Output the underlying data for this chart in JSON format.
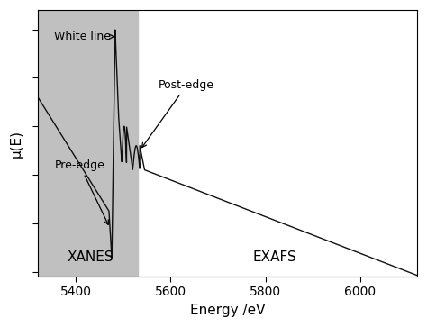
{
  "xmin": 5320,
  "xmax": 6120,
  "ymin": -0.02,
  "ymax": 1.08,
  "xanes_boundary": 5530,
  "xticks": [
    5400,
    5600,
    5800,
    6000
  ],
  "xlabel": "Energy /eV",
  "ylabel": "μ(E)",
  "xanes_label": "XANES",
  "exafs_label": "EXAFS",
  "xanes_color": "#c0c0c0",
  "line_color": "#111111",
  "background_color": "#ffffff",
  "annotation_whiteline": "White line",
  "annotation_preedge": "Pre-edge",
  "annotation_postedge": "Post-edge",
  "figsize": [
    4.74,
    3.63
  ],
  "dpi": 100
}
